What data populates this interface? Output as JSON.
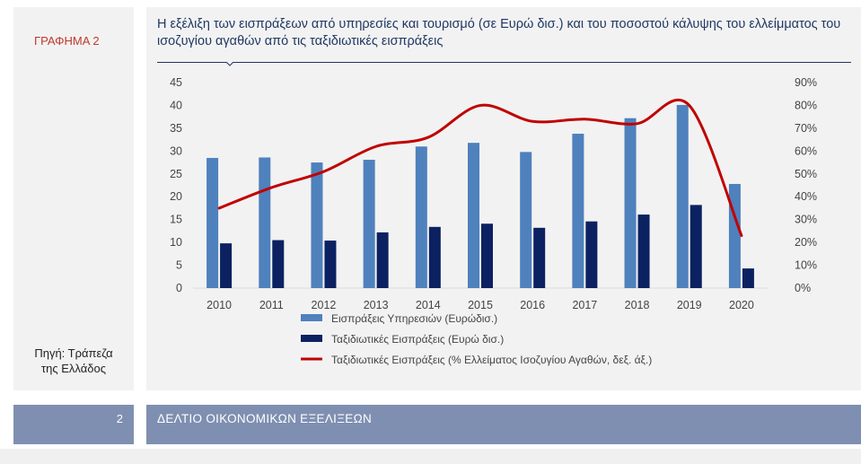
{
  "sidebar": {
    "graph_label": "ΓΡΑΦΗΜΑ 2",
    "source_line1": "Πηγή: Τράπεζα",
    "source_line2": "της Ελλάδος"
  },
  "footer": {
    "page_number": "2",
    "bulletin_title": "ΔΕΛΤΙΟ ΟΙΚΟΝΟΜΙΚΩΝ ΕΞΕΛΙΞΕΩΝ"
  },
  "colors": {
    "services_bar": "#4f81bd",
    "travel_bar": "#0c2161",
    "coverage_line": "#c00000",
    "label_red": "#c0392b",
    "title_blue": "#1f3864",
    "footer_bg": "#7f8fb1"
  },
  "chart_data": {
    "type": "bar",
    "title": "Η εξέλιξη των εισπράξεων από υπηρεσίες και τουρισμό (σε Ευρώ δισ.) και του ποσοστού κάλυψης του ελλείμματος του ισοζυγίου αγαθών από τις ταξιδιωτικές εισπράξεις",
    "categories": [
      "2010",
      "2011",
      "2012",
      "2013",
      "2014",
      "2015",
      "2016",
      "2017",
      "2018",
      "2019",
      "2020"
    ],
    "series": [
      {
        "name": "Εισπράξεις Υπηρεσιών (Ευρώδισ.)",
        "type": "bar",
        "axis": "left",
        "values": [
          28.5,
          28.6,
          27.5,
          28.1,
          31.0,
          31.8,
          29.8,
          33.8,
          37.2,
          40.1,
          22.8
        ]
      },
      {
        "name": "Ταξιδιωτικές Εισπράξεις (Ευρώ δισ.)",
        "type": "bar",
        "axis": "left",
        "values": [
          9.8,
          10.5,
          10.4,
          12.2,
          13.4,
          14.1,
          13.2,
          14.6,
          16.1,
          18.2,
          4.3
        ]
      },
      {
        "name": "Ταξιδιωτικές Εισπράξεις (% Ελλείματος Ισοζυγίου Αγαθών, δεξ. άξ.)",
        "type": "line",
        "axis": "right",
        "values": [
          0.35,
          0.44,
          0.51,
          0.62,
          0.66,
          0.8,
          0.73,
          0.74,
          0.72,
          0.8,
          0.23
        ]
      }
    ],
    "ylim": [
      0,
      45
    ],
    "y_ticks": [
      "0",
      "5",
      "10",
      "15",
      "20",
      "25",
      "30",
      "35",
      "40",
      "45"
    ],
    "y2lim": [
      0,
      0.9
    ],
    "y2_ticks": [
      "0%",
      "10%",
      "20%",
      "30%",
      "40%",
      "50%",
      "60%",
      "70%",
      "80%",
      "90%"
    ],
    "grid": false,
    "legend_position": "bottom"
  }
}
